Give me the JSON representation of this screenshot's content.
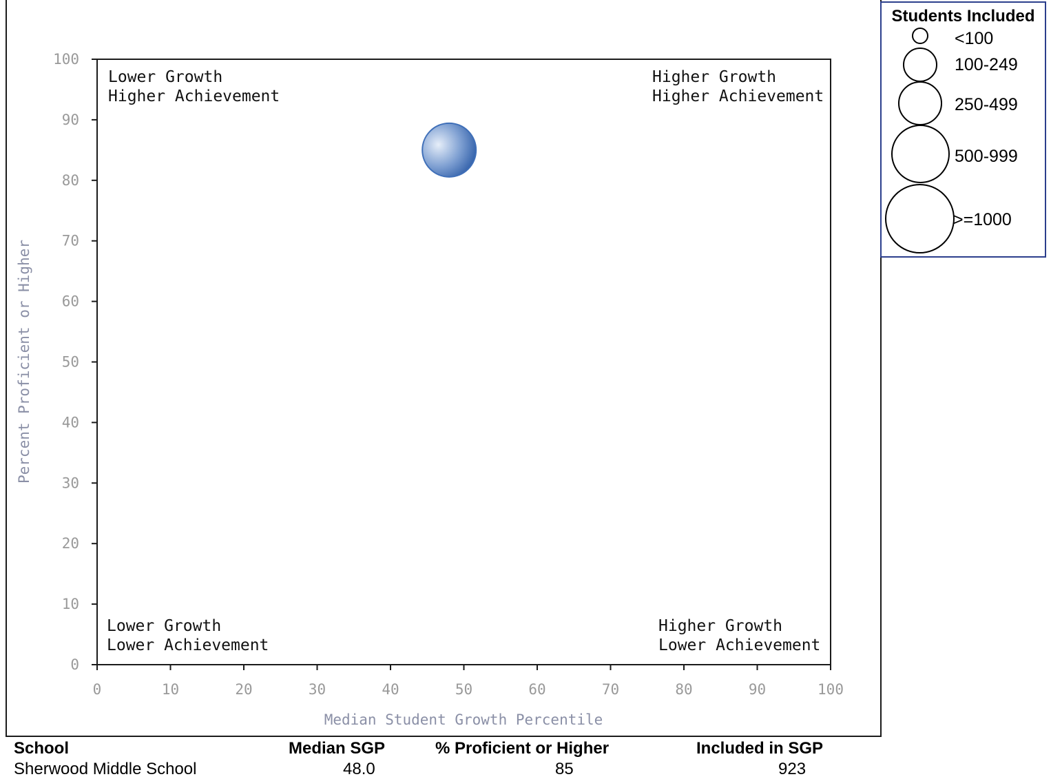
{
  "chart_data": {
    "type": "scatter",
    "title": "",
    "xlabel": "Median Student Growth Percentile",
    "ylabel": "Percent Proficient or Higher",
    "xlim": [
      0,
      100
    ],
    "ylim": [
      0,
      100
    ],
    "x_ticks": [
      "0",
      "10",
      "20",
      "30",
      "40",
      "50",
      "60",
      "70",
      "80",
      "90",
      "100"
    ],
    "y_ticks": [
      "0",
      "10",
      "20",
      "30",
      "40",
      "50",
      "60",
      "70",
      "80",
      "90",
      "100"
    ],
    "grid": false,
    "points": [
      {
        "x": 48.0,
        "y": 85,
        "size_class": "500-999",
        "color": "#3f6fb8"
      }
    ],
    "quadrants": {
      "top_left": [
        "Lower Growth",
        "Higher Achievement"
      ],
      "top_right": [
        "Higher Growth",
        "Higher Achievement"
      ],
      "bottom_left": [
        "Lower Growth",
        "Lower Achievement"
      ],
      "bottom_right": [
        "Higher Growth",
        "Lower Achievement"
      ]
    },
    "legend": {
      "title": "Students Included",
      "placement": "top-right",
      "items": [
        "<100",
        "100-249",
        "250-499",
        "500-999",
        ">=1000"
      ]
    }
  },
  "table": {
    "headers": [
      "School",
      "Median SGP",
      "% Proficient or Higher",
      "Included in SGP"
    ],
    "row": [
      "Sherwood Middle School",
      "48.0",
      "85",
      "923"
    ]
  },
  "colors": {
    "bubble": "#3f6fb8",
    "axis_text": "#999999",
    "legend_border": "#2b3e8c"
  }
}
